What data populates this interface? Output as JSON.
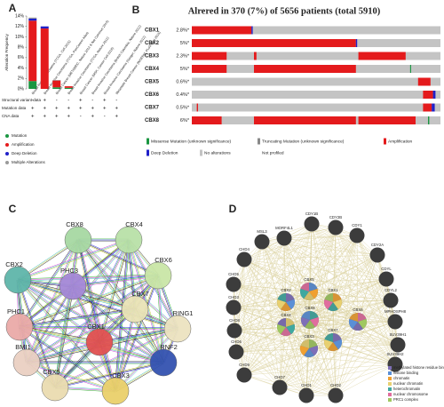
{
  "panel_labels": [
    "A",
    "B",
    "C",
    "D"
  ],
  "chart_data": {
    "type": "bar",
    "stacked": true,
    "y_label": "Alteration Frequency",
    "categories": [
      "Breast Invasive Carcinoma (TCGA, Cell 2015)",
      "Breast Invasive Carcinoma (TCGA, PanCancer Atlas)",
      "Breast Cancer (METABRIC, Nature 2012 & Nat Commun 2016)",
      "Breast Invasive Carcinoma (TCGA, Nature 2012)",
      "Breast Cancer (MSK, Cancer Cell 2018)",
      "Breast Invasive Carcinoma (British Columbia, Nature 2012)",
      "Breast Invasive Carcinoma (Sanger, Nature 2012)",
      "Metastatic Breast Cancer (INSERM, PLoS Med 2016)"
    ],
    "series": [
      {
        "name": "Mutation",
        "color": "#1a9641",
        "values": [
          1.5,
          0,
          0.3,
          0.2,
          0,
          0,
          0,
          0
        ]
      },
      {
        "name": "Amplification",
        "color": "#e41a1c",
        "values": [
          11.6,
          11.6,
          1.3,
          0.3,
          0,
          0,
          0,
          0
        ]
      },
      {
        "name": "Deep Deletion",
        "color": "#2020c8",
        "values": [
          0.4,
          0.4,
          0,
          0,
          0,
          0,
          0,
          0
        ]
      },
      {
        "name": "Multiple Alterations",
        "color": "#9a9a9a",
        "values": [
          0.2,
          0,
          0.1,
          0,
          0,
          0,
          0,
          0
        ]
      }
    ],
    "ylim": [
      0,
      14
    ],
    "yticks": [
      {
        "value": 0,
        "label": "0%"
      },
      {
        "value": 2,
        "label": "2%"
      },
      {
        "value": 4,
        "label": "4%"
      },
      {
        "value": 6,
        "label": "6%"
      },
      {
        "value": 8,
        "label": "8%"
      },
      {
        "value": 10,
        "label": "10%"
      },
      {
        "value": 12,
        "label": "12%"
      },
      {
        "value": 14,
        "label": "14%"
      }
    ]
  },
  "panel_a_table": {
    "rows": [
      {
        "label": "Structural variant data",
        "marks": [
          "-",
          "+",
          "-",
          "-",
          "+",
          "-",
          "+",
          "-"
        ]
      },
      {
        "label": "Mutation data",
        "marks": [
          "+",
          "+",
          "+",
          "+",
          "+",
          "+",
          "+",
          "+"
        ]
      },
      {
        "label": "CNA data",
        "marks": [
          "+",
          "+",
          "+",
          "+",
          "-",
          "+",
          "-",
          "+"
        ]
      }
    ]
  },
  "oncoprint": {
    "title": "Alrered in 370 (7%) of 5656 patients (total 5910)",
    "genes": [
      {
        "name": "CBX1",
        "altered": "2.8%*"
      },
      {
        "name": "CBX2",
        "altered": "5%*"
      },
      {
        "name": "CBX3",
        "altered": "2.3%*"
      },
      {
        "name": "CBX4",
        "altered": "5%*"
      },
      {
        "name": "CBX5",
        "altered": "0.6%*"
      },
      {
        "name": "CBX6",
        "altered": "0.4%*"
      },
      {
        "name": "CBX7",
        "altered": "0.5%*"
      },
      {
        "name": "CBX8",
        "altered": "6%*"
      }
    ],
    "legend": [
      "Missense Mutation (unknown significance)",
      "Truncating Mutation (unknown significance)",
      "Amplification",
      "Deep Deletion",
      "No alterations",
      "Not profiled"
    ]
  },
  "network_c": {
    "nodes": [
      "CBX8",
      "CBX4",
      "CBX6",
      "CBX2",
      "PHC3",
      "RING1",
      "CBX7",
      "PHC1",
      "CBX1",
      "RNF2",
      "BMI1",
      "CBX5",
      "CBX3"
    ]
  },
  "network_d": {
    "outer_nodes": [
      "CDY1B",
      "CDY2B",
      "CDY1",
      "MORF4L1",
      "MSL3",
      "CHD4",
      "CDY2A",
      "CHD5",
      "CDYL",
      "CHD3",
      "CDYL2",
      "CHD8",
      "MPHOSPH8",
      "CHD6",
      "SUV39H1",
      "CHD9",
      "SUV39H2",
      "CHD7",
      "CHD1",
      "CHD2"
    ],
    "inner_nodes": [
      "CBX2",
      "CBX5",
      "CBX1",
      "CBX4",
      "CBX8",
      "CBX6",
      "CBX3",
      "CBX7"
    ],
    "legend": [
      "methylated histone residue binding",
      "histone binding",
      "chromatin",
      "nuclear chromatin",
      "heterochromatin",
      "nuclear chromosome",
      "PRC1 complex"
    ]
  }
}
